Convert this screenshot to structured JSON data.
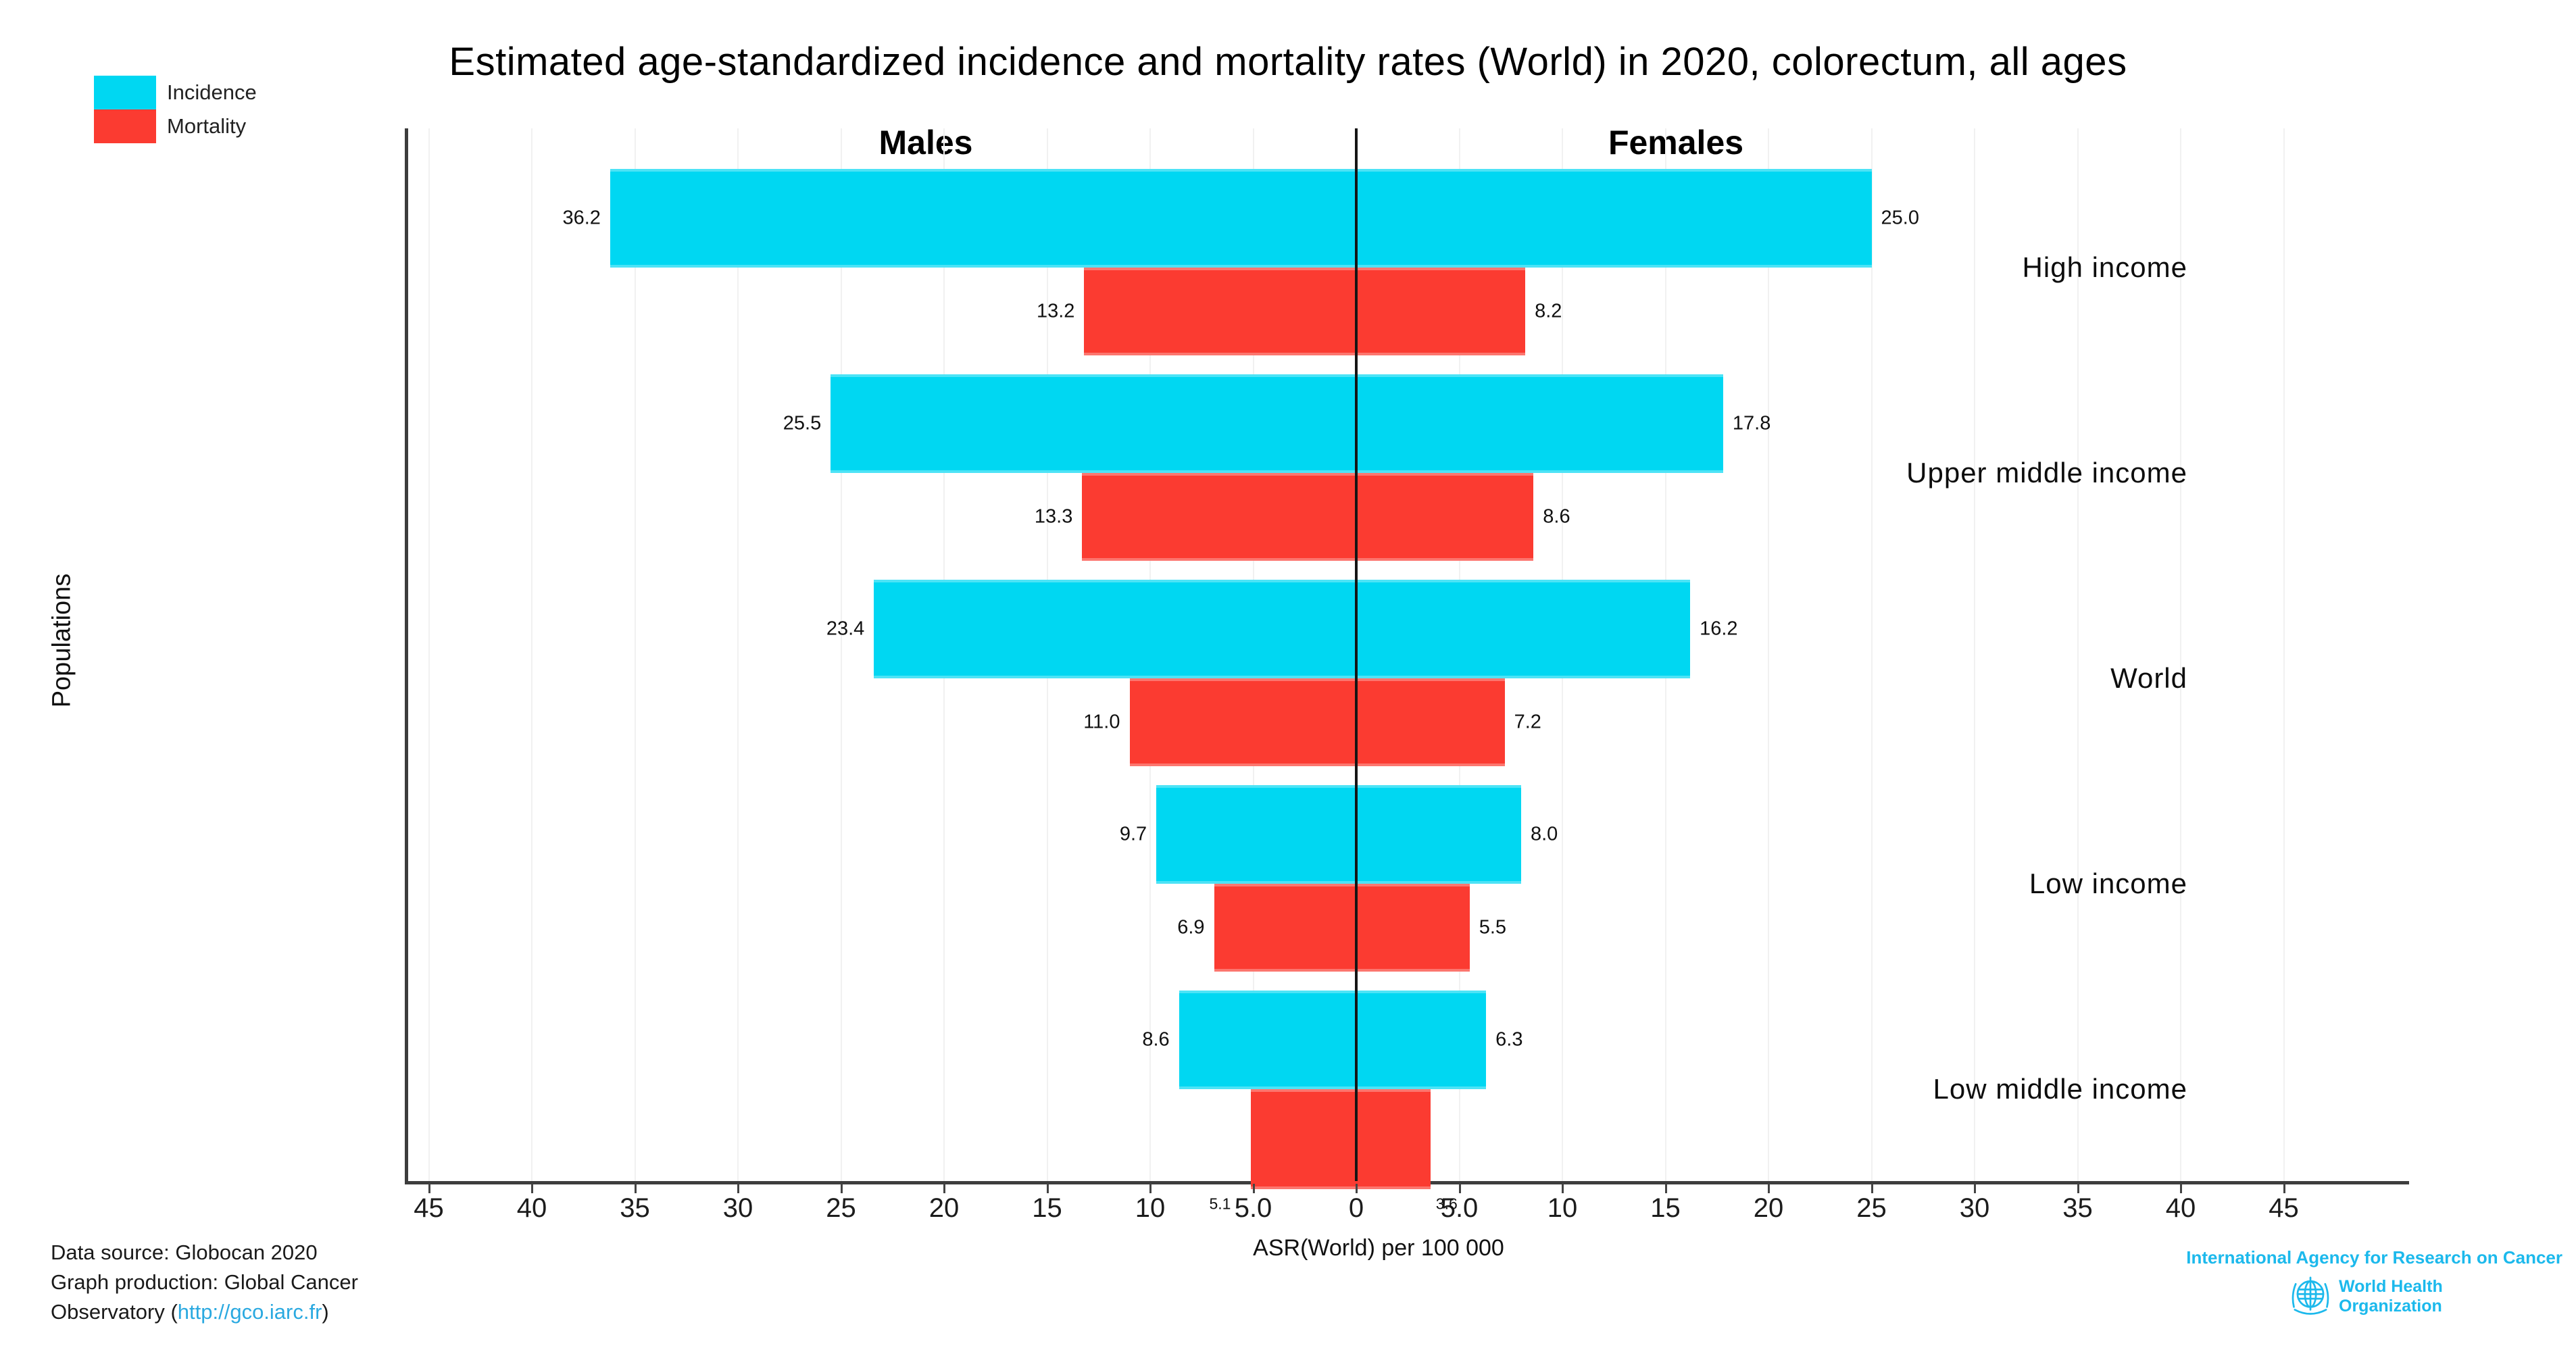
{
  "title": "Estimated age-standardized incidence and mortality rates (World) in 2020, colorectum, all ages",
  "legend": {
    "items": [
      {
        "label": "Incidence",
        "color": "#00d7f2"
      },
      {
        "label": "Mortality",
        "color": "#fb3b31"
      }
    ]
  },
  "chart_data": {
    "type": "bar",
    "variant": "diverging-population-pyramid",
    "title": "Estimated age-standardized incidence and mortality rates (World) in 2020, colorectum, all ages",
    "group_headers": {
      "left": "Males",
      "right": "Females"
    },
    "categories": [
      "High income",
      "Upper middle income",
      "World",
      "Low income",
      "Low middle income"
    ],
    "series": [
      {
        "name": "Incidence",
        "color": "#00d7f2",
        "male": [
          "36.2",
          "25.5",
          "23.4",
          "9.7",
          "8.6"
        ],
        "female": [
          "25.0",
          "17.8",
          "16.2",
          "8.0",
          "6.3"
        ]
      },
      {
        "name": "Mortality",
        "color": "#fb3b31",
        "male": [
          "13.2",
          "13.3",
          "11.0",
          "6.9",
          "5.1"
        ],
        "female": [
          "8.2",
          "8.6",
          "7.2",
          "5.5",
          "3.6"
        ]
      }
    ],
    "xlabel": "ASR(World) per 100 000",
    "ylabel": "Populations",
    "x_ticks": [
      {
        "v": -45,
        "l": "45"
      },
      {
        "v": -40,
        "l": "40"
      },
      {
        "v": -35,
        "l": "35"
      },
      {
        "v": -30,
        "l": "30"
      },
      {
        "v": -25,
        "l": "25"
      },
      {
        "v": -20,
        "l": "20"
      },
      {
        "v": -15,
        "l": "15"
      },
      {
        "v": -10,
        "l": "10"
      },
      {
        "v": -5,
        "l": "5.0"
      },
      {
        "v": 0,
        "l": "0"
      },
      {
        "v": 5,
        "l": "5.0"
      },
      {
        "v": 10,
        "l": "10"
      },
      {
        "v": 15,
        "l": "15"
      },
      {
        "v": 20,
        "l": "20"
      },
      {
        "v": 25,
        "l": "25"
      },
      {
        "v": 30,
        "l": "30"
      },
      {
        "v": 35,
        "l": "35"
      },
      {
        "v": 40,
        "l": "40"
      },
      {
        "v": 45,
        "l": "45"
      }
    ],
    "xlim": [
      -46,
      51
    ],
    "grid": true,
    "legend_position": "top-left"
  },
  "footer": {
    "line1": "Data source: Globocan 2020",
    "line2": "Graph production: Global Cancer",
    "line3_prefix": "Observatory (",
    "link": "http://gco.iarc.fr",
    "line3_suffix": ")"
  },
  "branding": {
    "iarc": "International Agency for Research on Cancer",
    "who_line1": "World Health",
    "who_line2": "Organization",
    "color": "#1cb9ec"
  }
}
